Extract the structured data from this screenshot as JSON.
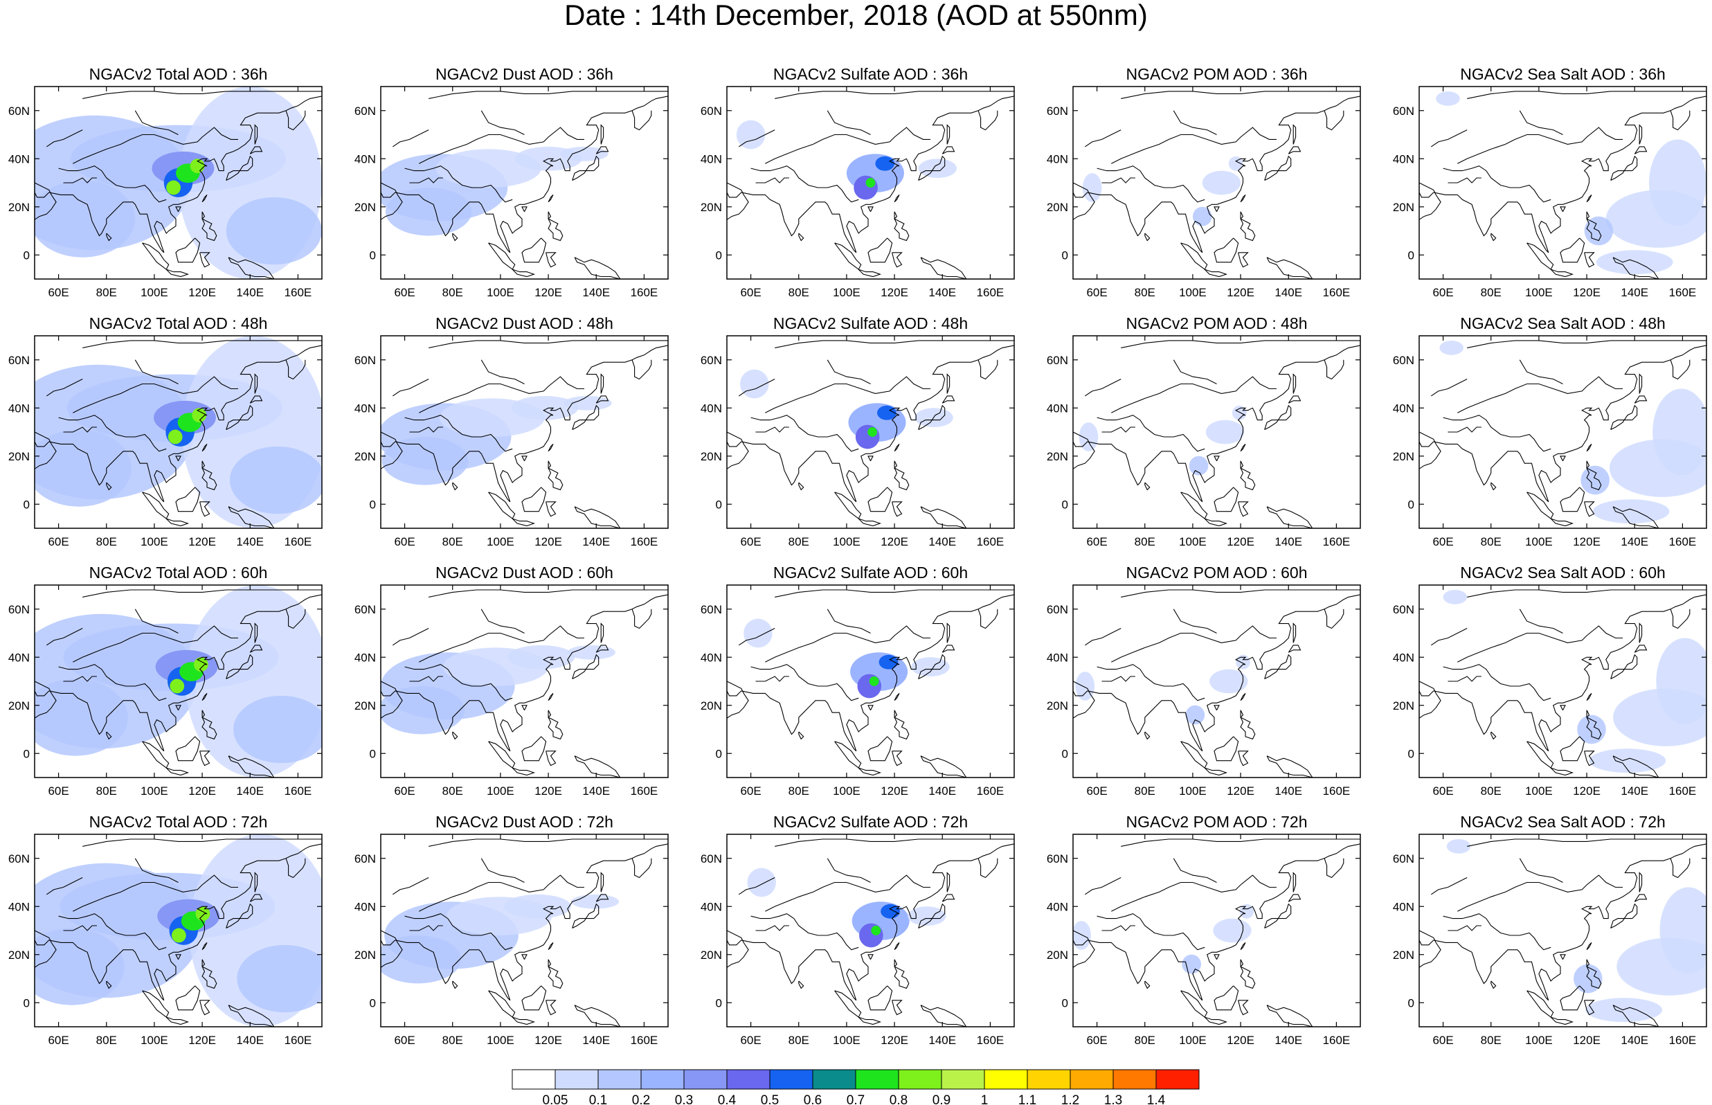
{
  "title": "Date : 14th December, 2018 (AOD at 550nm)",
  "row_labels": [
    "36h",
    "48h",
    "60h",
    "72h"
  ],
  "panels": [
    [
      {
        "title": "NGACv2 Total AOD : 36h",
        "species": "total"
      },
      {
        "title": "NGACv2 Dust AOD : 36h",
        "species": "dust"
      },
      {
        "title": "NGACv2 Sulfate AOD : 36h",
        "species": "sulfate"
      },
      {
        "title": "NGACv2 POM AOD : 36h",
        "species": "pom"
      },
      {
        "title": "NGACv2 Sea Salt AOD : 36h",
        "species": "seasalt"
      }
    ],
    [
      {
        "title": "NGACv2 Total AOD : 48h",
        "species": "total"
      },
      {
        "title": "NGACv2 Dust AOD : 48h",
        "species": "dust"
      },
      {
        "title": "NGACv2 Sulfate AOD : 48h",
        "species": "sulfate"
      },
      {
        "title": "NGACv2 POM AOD : 48h",
        "species": "pom"
      },
      {
        "title": "NGACv2 Sea Salt AOD : 48h",
        "species": "seasalt"
      }
    ],
    [
      {
        "title": "NGACv2 Total AOD : 60h",
        "species": "total"
      },
      {
        "title": "NGACv2 Dust AOD : 60h",
        "species": "dust"
      },
      {
        "title": "NGACv2 Sulfate AOD : 60h",
        "species": "sulfate"
      },
      {
        "title": "NGACv2 POM AOD : 60h",
        "species": "pom"
      },
      {
        "title": "NGACv2 Sea Salt AOD : 60h",
        "species": "seasalt"
      }
    ],
    [
      {
        "title": "NGACv2 Total AOD : 72h",
        "species": "total"
      },
      {
        "title": "NGACv2 Dust AOD : 72h",
        "species": "dust"
      },
      {
        "title": "NGACv2 Sulfate AOD : 72h",
        "species": "sulfate"
      },
      {
        "title": "NGACv2 POM AOD : 72h",
        "species": "pom"
      },
      {
        "title": "NGACv2 Sea Salt  AOD : 72h",
        "species": "seasalt"
      }
    ]
  ],
  "map_extent": {
    "lon": [
      50,
      170
    ],
    "lat": [
      -10,
      70
    ]
  },
  "x_ticks": [
    {
      "value": 60,
      "label": "60E"
    },
    {
      "value": 80,
      "label": "80E"
    },
    {
      "value": 100,
      "label": "100E"
    },
    {
      "value": 120,
      "label": "120E"
    },
    {
      "value": 140,
      "label": "140E"
    },
    {
      "value": 160,
      "label": "160E"
    }
  ],
  "y_ticks": [
    {
      "value": 60,
      "label": "60N"
    },
    {
      "value": 40,
      "label": "40N"
    },
    {
      "value": 20,
      "label": "20N"
    },
    {
      "value": 0,
      "label": "0"
    }
  ],
  "colorbar": {
    "colors": [
      "#ffffff",
      "#d0dcff",
      "#b4c8ff",
      "#9bb4ff",
      "#8797f5",
      "#6a68ee",
      "#1563f0",
      "#0a8c8c",
      "#1ee41e",
      "#7ef01c",
      "#baf24a",
      "#ffff00",
      "#ffd400",
      "#ffaa00",
      "#ff7800",
      "#ff2000"
    ],
    "labels": [
      "0.05",
      "0.1",
      "0.2",
      "0.3",
      "0.4",
      "0.5",
      "0.6",
      "0.7",
      "0.8",
      "0.9",
      "1",
      "1.1",
      "1.2",
      "1.3",
      "1.4"
    ]
  },
  "coastline_color": "#000000"
}
